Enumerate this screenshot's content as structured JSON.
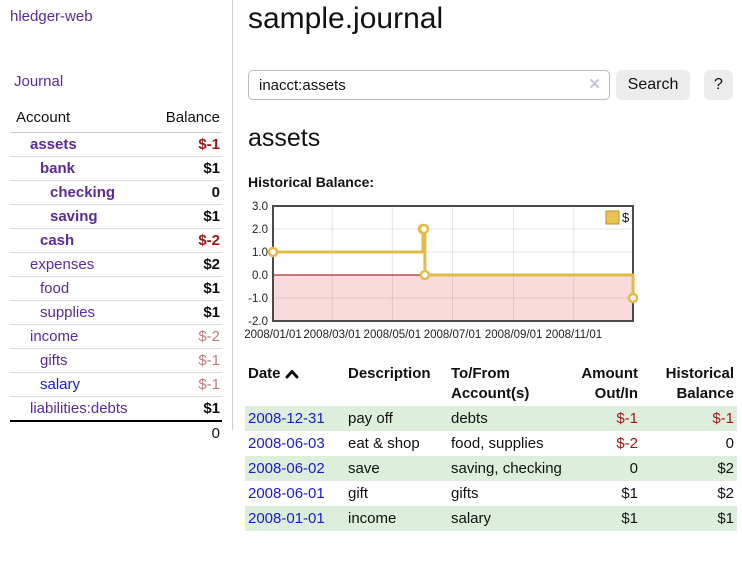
{
  "app": {
    "brand": "hledger-web"
  },
  "colors": {
    "accent_purple": "#5b2a9b",
    "link_blue": "#1a1ad1",
    "negative_strong": "#9d1515",
    "negative_muted": "#bd7e7e",
    "row_stripe_green": "#ddeedd",
    "chart_line_gold": "#e2bb49",
    "chart_negative_fill": "#fadbdb",
    "chart_zero_line": "#990000"
  },
  "sidebar": {
    "nav": [
      {
        "label": "Journal"
      }
    ],
    "accounts_table": {
      "headers": {
        "account": "Account",
        "balance": "Balance"
      },
      "rows": [
        {
          "account": "assets",
          "balance": "$-1",
          "level": 1,
          "bold": true,
          "tone": "neg-strong",
          "link": "purple"
        },
        {
          "account": "bank",
          "balance": "$1",
          "level": 2,
          "bold": true,
          "tone": "normal",
          "link": "purple"
        },
        {
          "account": "checking",
          "balance": "0",
          "level": 3,
          "bold": true,
          "tone": "normal",
          "link": "purple"
        },
        {
          "account": "saving",
          "balance": "$1",
          "level": 3,
          "bold": true,
          "tone": "normal",
          "link": "purple"
        },
        {
          "account": "cash",
          "balance": "$-2",
          "level": 2,
          "bold": true,
          "tone": "neg-strong",
          "link": "purple"
        },
        {
          "account": "expenses",
          "balance": "$2",
          "level": 1,
          "bold": false,
          "tone": "normal",
          "link": "purple"
        },
        {
          "account": "food",
          "balance": "$1",
          "level": 2,
          "bold": false,
          "tone": "normal",
          "link": "purple"
        },
        {
          "account": "supplies",
          "balance": "$1",
          "level": 2,
          "bold": false,
          "tone": "normal",
          "link": "purple"
        },
        {
          "account": "income",
          "balance": "$-2",
          "level": 1,
          "bold": false,
          "tone": "neg-muted",
          "link": "purple"
        },
        {
          "account": "gifts",
          "balance": "$-1",
          "level": 2,
          "bold": false,
          "tone": "neg-muted",
          "link": "purple"
        },
        {
          "account": "salary",
          "balance": "$-1",
          "level": 2,
          "bold": false,
          "tone": "neg-muted",
          "link": "blue"
        },
        {
          "account": "liabilities:debts",
          "balance": "$1",
          "level": 1,
          "bold": false,
          "tone": "normal",
          "link": "purple"
        }
      ],
      "total": "0"
    }
  },
  "main": {
    "title": "sample.journal",
    "search": {
      "query": "inacct:assets",
      "clear_icon": "✕",
      "button_label": "Search",
      "help_label": "?"
    },
    "account_heading": "assets",
    "chart_heading": "Historical Balance:"
  },
  "chart_data": {
    "type": "line",
    "title": "Historical Balance:",
    "step": "after",
    "series": [
      {
        "name": "$",
        "dates": [
          "2008-01-01",
          "2008-06-01",
          "2008-06-02",
          "2008-06-03",
          "2008-12-31"
        ],
        "values": [
          1,
          2,
          2,
          0,
          -1
        ]
      }
    ],
    "x_ticks": [
      "2008/01/01",
      "2008/03/01",
      "2008/05/01",
      "2008/07/01",
      "2008/09/01",
      "2008/11/01"
    ],
    "y_ticks": [
      "3.0",
      "2.0",
      "1.0",
      "0.0",
      "-1.0",
      "-2.0"
    ],
    "ylim": [
      -2,
      3
    ],
    "grid": true,
    "negative_region_shaded": true,
    "legend_position": "top-right"
  },
  "register": {
    "headers": {
      "date": "Date",
      "description": "Description",
      "accounts_line1": "To/From",
      "accounts_line2": "Account(s)",
      "amount_line1": "Amount",
      "amount_line2": "Out/In",
      "balance_line1": "Historical",
      "balance_line2": "Balance"
    },
    "rows": [
      {
        "date": "2008-12-31",
        "description": "pay off",
        "accounts": "debts",
        "amount": "$-1",
        "balance": "$-1"
      },
      {
        "date": "2008-06-03",
        "description": "eat & shop",
        "accounts": "food, supplies",
        "amount": "$-2",
        "balance": "0"
      },
      {
        "date": "2008-06-02",
        "description": "save",
        "accounts": "saving, checking",
        "amount": "0",
        "balance": "$2"
      },
      {
        "date": "2008-06-01",
        "description": "gift",
        "accounts": "gifts",
        "amount": "$1",
        "balance": "$2"
      },
      {
        "date": "2008-01-01",
        "description": "income",
        "accounts": "salary",
        "amount": "$1",
        "balance": "$1"
      }
    ]
  }
}
